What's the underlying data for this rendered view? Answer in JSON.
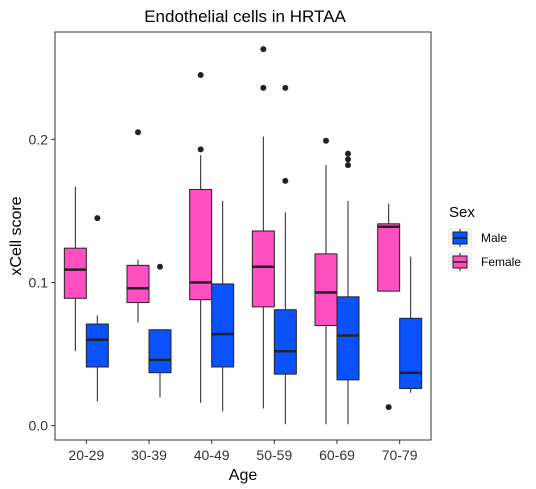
{
  "chart_data": {
    "type": "boxplot",
    "title": "Endothelial cells in HRTAA",
    "xlabel": "Age",
    "ylabel": "xCell score",
    "categories": [
      "20-29",
      "30-39",
      "40-49",
      "50-59",
      "60-69",
      "70-79"
    ],
    "ylim": [
      -0.01,
      0.275
    ],
    "yticks": [
      {
        "value": 0.0,
        "label": "0.0"
      },
      {
        "value": 0.1,
        "label": "0.1"
      },
      {
        "value": 0.2,
        "label": "0.2"
      }
    ],
    "grid": false,
    "legend": {
      "title": "Sex",
      "placement": "right"
    },
    "series": [
      {
        "name": "Female",
        "color": "#ff4fc0",
        "boxes": [
          {
            "whislo": 0.052,
            "q1": 0.089,
            "med": 0.109,
            "q3": 0.124,
            "whishi": 0.167,
            "outliers": []
          },
          {
            "whislo": 0.072,
            "q1": 0.086,
            "med": 0.096,
            "q3": 0.112,
            "whishi": 0.116,
            "outliers": [
              0.205
            ]
          },
          {
            "whislo": 0.016,
            "q1": 0.088,
            "med": 0.1,
            "q3": 0.165,
            "whishi": 0.189,
            "outliers": [
              0.193,
              0.245
            ]
          },
          {
            "whislo": 0.012,
            "q1": 0.083,
            "med": 0.111,
            "q3": 0.136,
            "whishi": 0.202,
            "outliers": [
              0.236,
              0.263
            ]
          },
          {
            "whislo": 0.001,
            "q1": 0.07,
            "med": 0.093,
            "q3": 0.12,
            "whishi": 0.182,
            "outliers": [
              0.199
            ]
          },
          {
            "whislo": 0.094,
            "q1": 0.094,
            "med": 0.139,
            "q3": 0.141,
            "whishi": 0.155,
            "outliers": [
              0.013
            ]
          }
        ]
      },
      {
        "name": "Male",
        "color": "#0b52ff",
        "boxes": [
          {
            "whislo": 0.017,
            "q1": 0.041,
            "med": 0.06,
            "q3": 0.071,
            "whishi": 0.077,
            "outliers": [
              0.145
            ]
          },
          {
            "whislo": 0.02,
            "q1": 0.037,
            "med": 0.046,
            "q3": 0.067,
            "whishi": 0.067,
            "outliers": [
              0.111
            ]
          },
          {
            "whislo": 0.01,
            "q1": 0.041,
            "med": 0.064,
            "q3": 0.099,
            "whishi": 0.157,
            "outliers": []
          },
          {
            "whislo": 0.001,
            "q1": 0.036,
            "med": 0.052,
            "q3": 0.081,
            "whishi": 0.149,
            "outliers": [
              0.171,
              0.236
            ]
          },
          {
            "whislo": 0.001,
            "q1": 0.032,
            "med": 0.063,
            "q3": 0.09,
            "whishi": 0.157,
            "outliers": [
              0.182,
              0.186,
              0.19
            ]
          },
          {
            "whislo": 0.023,
            "q1": 0.026,
            "med": 0.037,
            "q3": 0.075,
            "whishi": 0.118,
            "outliers": []
          }
        ]
      }
    ],
    "legend_order": [
      "Male",
      "Female"
    ]
  }
}
